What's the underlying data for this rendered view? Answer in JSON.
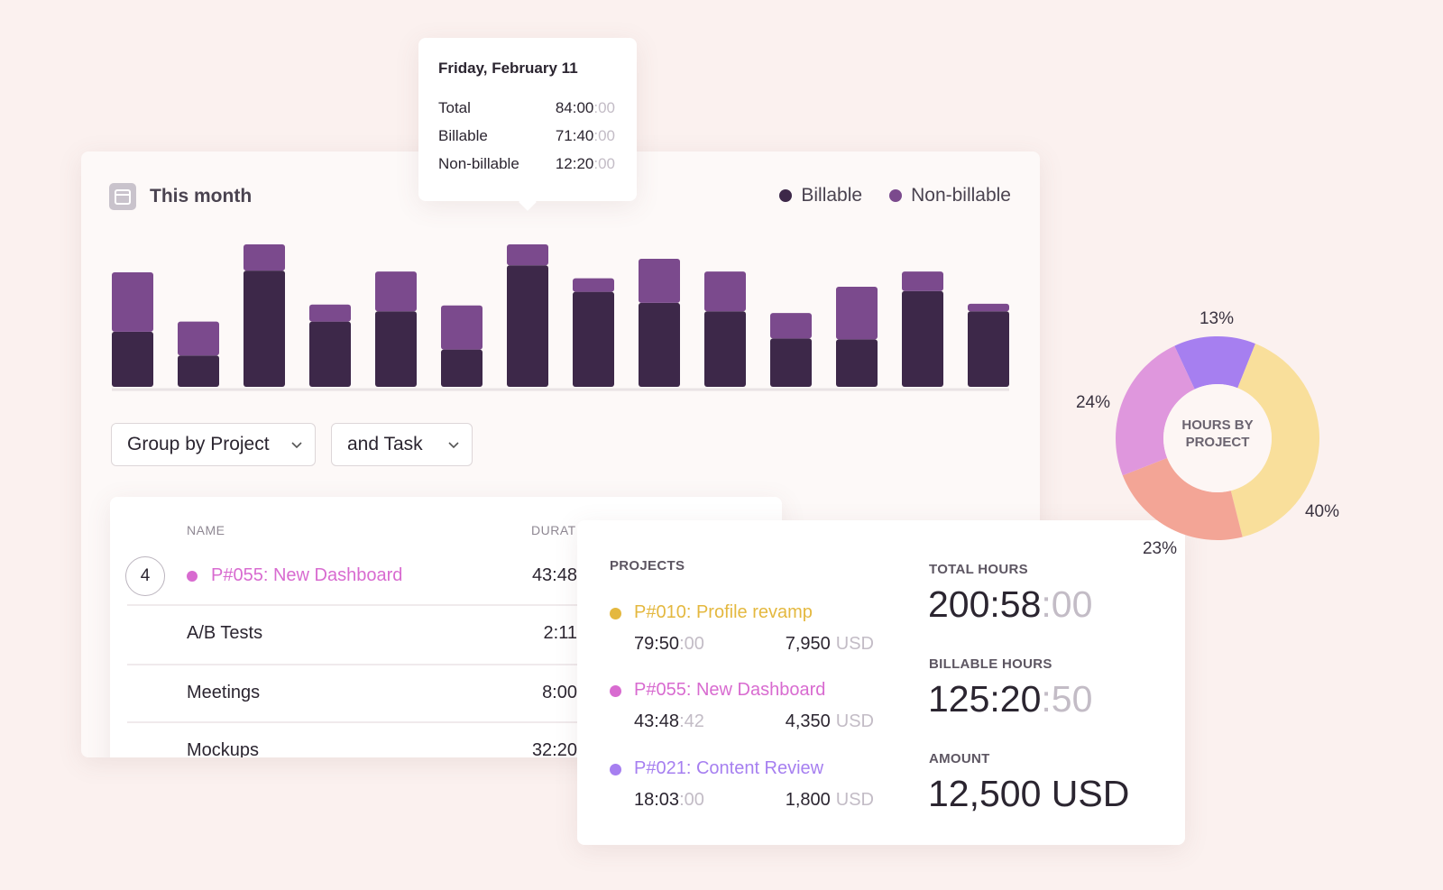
{
  "header": {
    "title": "This month"
  },
  "tooltip": {
    "title": "Friday, February 11",
    "rows": [
      {
        "label": "Total",
        "value": "84:00",
        "seconds": ":00"
      },
      {
        "label": "Billable",
        "value": "71:40",
        "seconds": ":00"
      },
      {
        "label": "Non-billable",
        "value": "12:20",
        "seconds": ":00"
      }
    ]
  },
  "chart_data": [
    {
      "type": "bar",
      "stacked": true,
      "series": [
        {
          "name": "Billable",
          "color": "#3d2849",
          "values": [
            32.5,
            18.5,
            68.5,
            38.5,
            44.5,
            22,
            71.67,
            56,
            49.5,
            44.5,
            28.5,
            28,
            56.5,
            44.5
          ]
        },
        {
          "name": "Non-billable",
          "color": "#7b4a8d",
          "values": [
            35,
            20,
            15.5,
            10,
            23.5,
            26,
            12.33,
            8,
            26,
            23.5,
            15,
            31,
            11.5,
            4.5
          ]
        }
      ]
    },
    {
      "type": "pie",
      "donut": true,
      "title": "HOURS BY PROJECT",
      "values": [
        13,
        40,
        23,
        24
      ],
      "value_labels": [
        "13%",
        "40%",
        "23%",
        "24%"
      ],
      "colors": [
        "#a67ff0",
        "#f9df9b",
        "#f3a596",
        "#df97dd"
      ]
    }
  ],
  "controls": {
    "group_by": "Group by Project",
    "and_task": "and Task"
  },
  "table": {
    "columns": [
      "NAME",
      "DURAT"
    ],
    "rows": [
      {
        "badge": "4",
        "name": "P#055: New Dashboard",
        "color": "#d86bd0",
        "duration": "43:48"
      },
      {
        "name": "A/B Tests",
        "duration": "2:11"
      },
      {
        "name": "Meetings",
        "duration": "8:00"
      },
      {
        "name": "Mockups",
        "duration": "32:20"
      }
    ]
  },
  "projects_card": {
    "title": "PROJECTS",
    "projects": [
      {
        "name": "P#010: Profile revamp",
        "color": "#e4b83f",
        "time": "79:50",
        "time_seconds": ":00",
        "amount": "7,950",
        "currency": "USD"
      },
      {
        "name": "P#055: New Dashboard",
        "color": "#d86bd0",
        "time": "43:48",
        "time_seconds": ":42",
        "amount": "4,350",
        "currency": "USD"
      },
      {
        "name": "P#021: Content Review",
        "color": "#a67ff0",
        "time": "18:03",
        "time_seconds": ":00",
        "amount": "1,800",
        "currency": "USD"
      }
    ],
    "totals": [
      {
        "label": "TOTAL HOURS",
        "value": "200:58",
        "value_dim": ":00"
      },
      {
        "label": "BILLABLE HOURS",
        "value": "125:20",
        "value_dim": ":50"
      },
      {
        "label": "AMOUNT",
        "value": "12,500 USD"
      }
    ]
  }
}
